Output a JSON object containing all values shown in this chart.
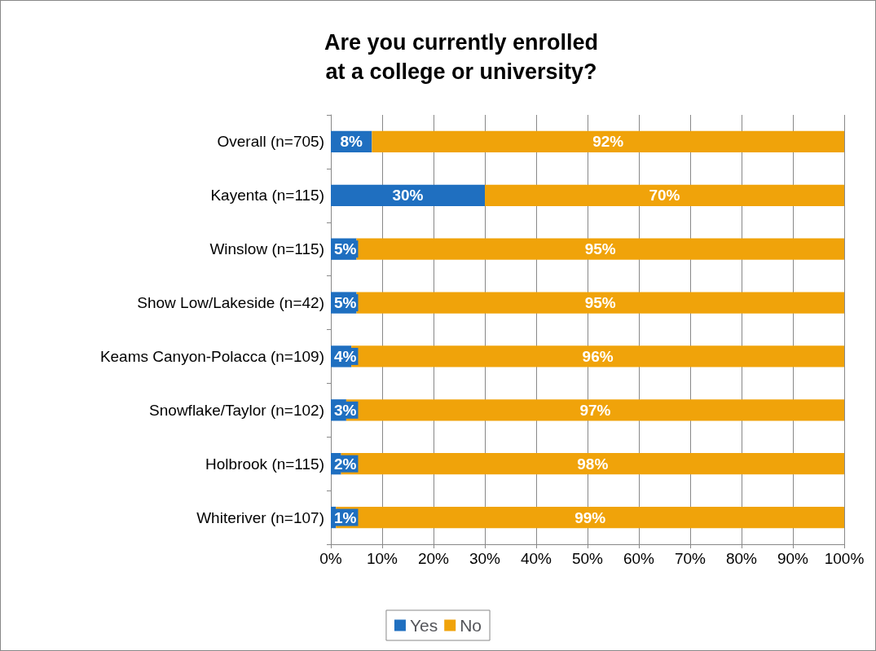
{
  "chart_data": {
    "type": "bar",
    "orientation": "horizontal",
    "stacked": true,
    "title": "Are you currently enrolled\nat a college or university?",
    "categories": [
      "Overall (n=705)",
      "Kayenta (n=115)",
      "Winslow (n=115)",
      "Show Low/Lakeside (n=42)",
      "Keams Canyon-Polacca (n=109)",
      "Snowflake/Taylor (n=102)",
      "Holbrook (n=115)",
      "Whiteriver (n=107)"
    ],
    "series": [
      {
        "name": "Yes",
        "color": "#1f6fc0",
        "values": [
          8,
          30,
          5,
          5,
          4,
          3,
          2,
          1
        ],
        "value_labels": [
          "8%",
          "30%",
          "5%",
          "5%",
          "4%",
          "3%",
          "2%",
          "1%"
        ]
      },
      {
        "name": "No",
        "color": "#f0a30a",
        "values": [
          92,
          70,
          95,
          95,
          96,
          97,
          98,
          99
        ],
        "value_labels": [
          "92%",
          "70%",
          "95%",
          "95%",
          "96%",
          "97%",
          "98%",
          "99%"
        ]
      }
    ],
    "xlim": [
      0,
      100
    ],
    "xticks": [
      {
        "value": 0,
        "label": "0%"
      },
      {
        "value": 10,
        "label": "10%"
      },
      {
        "value": 20,
        "label": "20%"
      },
      {
        "value": 30,
        "label": "30%"
      },
      {
        "value": 40,
        "label": "40%"
      },
      {
        "value": 50,
        "label": "50%"
      },
      {
        "value": 60,
        "label": "60%"
      },
      {
        "value": 70,
        "label": "70%"
      },
      {
        "value": 80,
        "label": "80%"
      },
      {
        "value": 90,
        "label": "90%"
      },
      {
        "value": 100,
        "label": "100%"
      }
    ],
    "grid": "x",
    "legend": "bottom"
  }
}
